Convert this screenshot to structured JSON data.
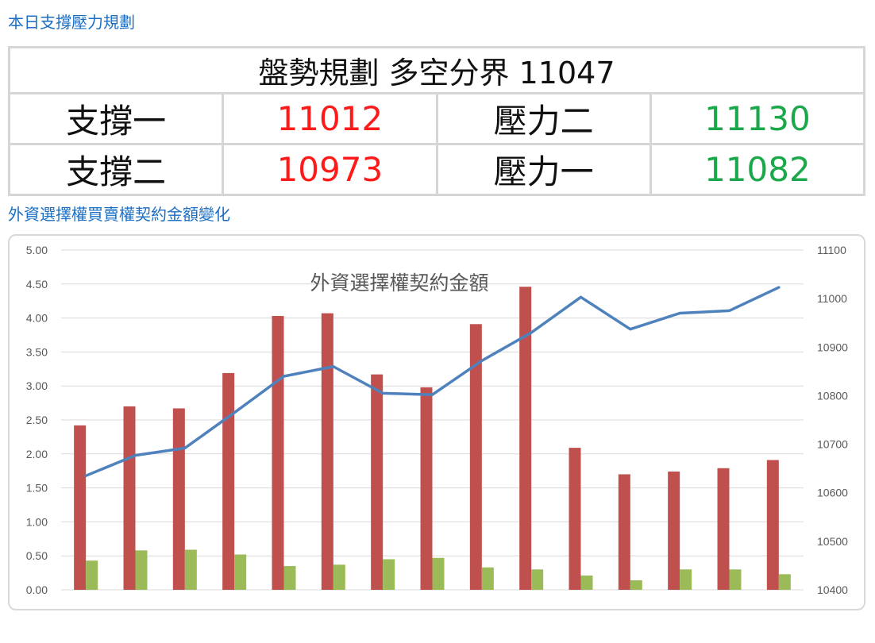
{
  "sections": {
    "plan_title": "本日支撐壓力規劃",
    "chart_section_title": "外資選擇權買賣權契約金額變化"
  },
  "plan": {
    "header": "盤勢規劃 多空分界 11047",
    "rows": [
      {
        "support_label": "支撐一",
        "support_value": "11012",
        "resistance_label": "壓力二",
        "resistance_value": "11130"
      },
      {
        "support_label": "支撐二",
        "support_value": "10973",
        "resistance_label": "壓力一",
        "resistance_value": "11082"
      }
    ]
  },
  "colors": {
    "support": "#ff1a1a",
    "resistance": "#1aa84a",
    "bar_call": "#c0504d",
    "bar_put": "#9bbb59",
    "line": "#4f81bd",
    "section_title": "#1a6fc4"
  },
  "chart_data": {
    "type": "bar",
    "title": "外資選擇權契約金額",
    "categories": [
      "",
      "",
      "",
      "",
      "",
      "",
      "",
      "",
      "",
      "",
      "",
      "",
      "",
      "",
      ""
    ],
    "series": [
      {
        "values": [
          2.42,
          2.7,
          2.67,
          3.19,
          4.03,
          4.07,
          3.17,
          2.98,
          3.91,
          4.46,
          2.09,
          1.7,
          1.74,
          1.79,
          1.91
        ]
      },
      {
        "values": [
          0.43,
          0.58,
          0.59,
          0.52,
          0.35,
          0.37,
          0.45,
          0.47,
          0.33,
          0.3,
          0.21,
          0.14,
          0.3,
          0.3,
          0.23
        ]
      },
      {
        "type": "line",
        "axis": "right",
        "values": [
          10635,
          10677,
          10692,
          10765,
          10840,
          10860,
          10805,
          10802,
          10872,
          10930,
          11003,
          10937,
          10970,
          10975,
          11023
        ]
      }
    ],
    "ylim": [
      0,
      5
    ],
    "y_ticks": [
      "0.00",
      "0.50",
      "1.00",
      "1.50",
      "2.00",
      "2.50",
      "3.00",
      "3.50",
      "4.00",
      "4.50",
      "5.00"
    ],
    "y2lim": [
      10400,
      11100
    ],
    "y2_ticks": [
      "10400",
      "10500",
      "10600",
      "10700",
      "10800",
      "10900",
      "11000",
      "11100"
    ],
    "grid": true
  }
}
